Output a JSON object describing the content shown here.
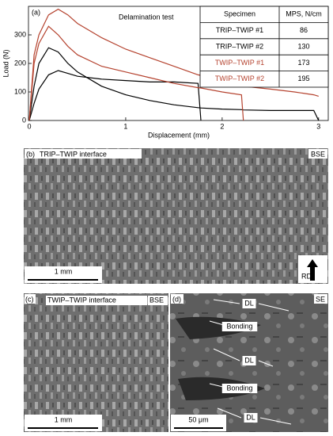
{
  "chart_data": {
    "type": "line",
    "label": "(a)",
    "annotation": "Delamination test",
    "x_label": "Displacement (mm)",
    "y_label": "Load (N)",
    "x": [
      0,
      0.05,
      0.1,
      0.2,
      0.3,
      0.4,
      0.5,
      0.75,
      1,
      1.25,
      1.5,
      1.75,
      1.78,
      2,
      2.2,
      2.22,
      2.5,
      2.75,
      2.95,
      3.0
    ],
    "series": [
      {
        "name": "TRIP–TWIP #1",
        "color": "#000000",
        "values": [
          0,
          60,
          110,
          160,
          175,
          165,
          155,
          145,
          140,
          135,
          135,
          130,
          0,
          null,
          null,
          null,
          null,
          null,
          null,
          null
        ]
      },
      {
        "name": "TRIP–TWIP #2",
        "color": "#000000",
        "values": [
          0,
          120,
          200,
          255,
          240,
          200,
          170,
          120,
          90,
          70,
          55,
          45,
          44,
          40,
          38,
          37,
          35,
          35,
          35,
          0
        ]
      },
      {
        "name": "TWIP–TWIP #1",
        "color": "#b5432f",
        "values": [
          0,
          200,
          270,
          330,
          300,
          260,
          230,
          190,
          170,
          150,
          130,
          115,
          114,
          100,
          90,
          0,
          null,
          null,
          null,
          null
        ]
      },
      {
        "name": "TWIP–TWIP #2",
        "color": "#b5432f",
        "values": [
          0,
          230,
          300,
          370,
          390,
          370,
          340,
          290,
          250,
          220,
          190,
          160,
          158,
          140,
          125,
          120,
          110,
          100,
          90,
          85
        ]
      }
    ],
    "xlim": [
      0,
      3.1
    ],
    "xticks": [
      0,
      1,
      2,
      3
    ],
    "ylim": [
      0,
      400
    ],
    "yticks": [
      0,
      100,
      200,
      300
    ],
    "table": {
      "headers": [
        "Specimen",
        "MPS, N/cm"
      ],
      "values": [
        86,
        130,
        173,
        195
      ]
    }
  },
  "panels": [
    {
      "label": "(b)",
      "title": "TRIP–TWIP interface",
      "detector": "BSE",
      "scale_bar": "1 mm",
      "direction": "RD"
    },
    {
      "label": "(c)",
      "title": "TWIP–TWIP interface",
      "detector": "BSE",
      "scale_bar": "1 mm"
    },
    {
      "label": "(d)",
      "detector": "SE",
      "scale_bar": "50 μm",
      "annotations": [
        "DL",
        "Bonding",
        "DL",
        "Bonding",
        "DL"
      ]
    }
  ]
}
